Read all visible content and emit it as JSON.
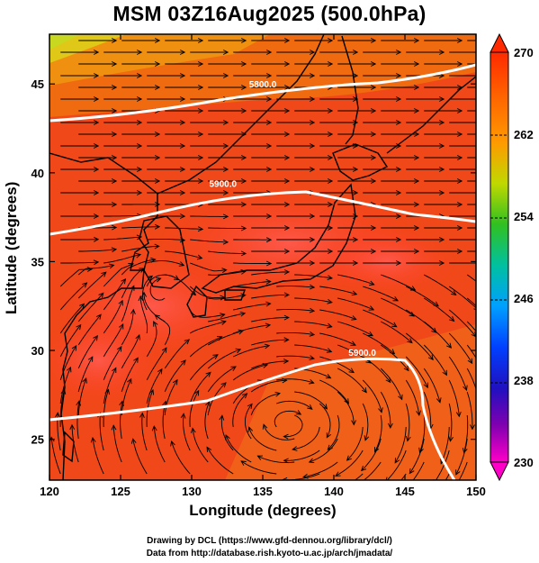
{
  "title": "MSM 03Z16Aug2025 (500.0hPa)",
  "xlabel": "Longitude (degrees)",
  "ylabel": "Latitude  (degrees)",
  "credits": {
    "line1": "Drawing by DCL (https://www.gfd-dennou.org/library/dcl/)",
    "line2": "Data from http://database.rish.kyoto-u.ac.jp/arch/jmadata/"
  },
  "map": {
    "lon_range": [
      120,
      150
    ],
    "lat_range": [
      22.7,
      47.8
    ],
    "lon_ticks": [
      "120",
      "125",
      "130",
      "135",
      "140",
      "145",
      "150"
    ],
    "lat_ticks": [
      "25",
      "30",
      "35",
      "40",
      "45"
    ],
    "contours": [
      {
        "label": "5800.0",
        "lon": 135.0,
        "lat": 44.8
      },
      {
        "label": "5900.0",
        "lon": 132.2,
        "lat": 39.2
      },
      {
        "label": "5900.0",
        "lon": 142.0,
        "lat": 29.7
      }
    ]
  },
  "colorbar": {
    "labels": [
      "270",
      "262",
      "254",
      "246",
      "238",
      "230"
    ],
    "colors": [
      "#ff2a00",
      "#ff7a00",
      "#c8dc00",
      "#00c040",
      "#00c8c8",
      "#0050ff",
      "#2020c0",
      "#a000a0",
      "#ff00c8"
    ]
  },
  "colors": {
    "field_warm": "#f04818",
    "field_hot": "#ff3820",
    "field_orange": "#f07a10",
    "field_yellow": "#e0d020",
    "contour": "#ffffff",
    "streamline": "#000000"
  }
}
